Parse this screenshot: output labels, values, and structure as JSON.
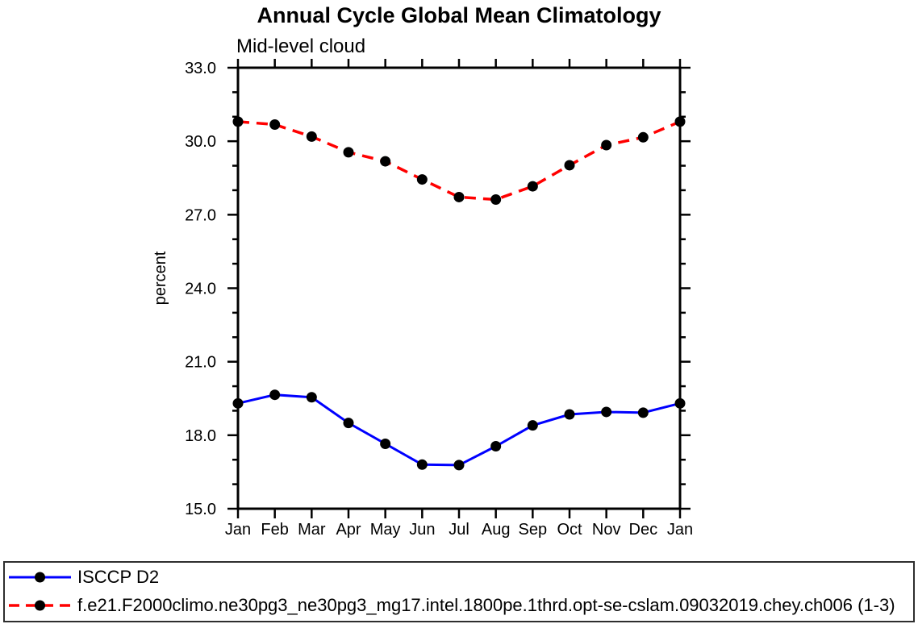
{
  "title": "Annual Cycle Global Mean Climatology",
  "subtitle": "Mid-level cloud",
  "chart_data": {
    "type": "line",
    "title": "Annual Cycle Global Mean Climatology",
    "subtitle": "Mid-level cloud",
    "ylabel": "percent",
    "xlabel": "",
    "x_categories": [
      "Jan",
      "Feb",
      "Mar",
      "Apr",
      "May",
      "Jun",
      "Jul",
      "Aug",
      "Sep",
      "Oct",
      "Nov",
      "Dec",
      "Jan"
    ],
    "ylim": [
      15.0,
      33.0
    ],
    "ytick_major": [
      15.0,
      18.0,
      21.0,
      24.0,
      27.0,
      30.0,
      33.0
    ],
    "ytick_minor_step": 1.0,
    "grid": false,
    "legend_position": "bottom-outside-box",
    "axis_color": "#000000",
    "marker_color": "#000000",
    "series": [
      {
        "name": "ISCCP D2",
        "color": "#0000ff",
        "line_style": "solid",
        "marker": "filled-circle",
        "values": [
          19.3,
          19.65,
          19.55,
          18.5,
          17.65,
          16.8,
          16.78,
          17.55,
          18.4,
          18.85,
          18.95,
          18.92,
          19.3
        ]
      },
      {
        "name": "f.e21.F2000climo.ne30pg3_ne30pg3_mg17.intel.1800pe.1thrd.opt-se-cslam.09032019.chey.ch006 (1-3)",
        "color": "#ff0000",
        "line_style": "dashed",
        "marker": "filled-circle",
        "values": [
          30.8,
          30.68,
          30.19,
          29.55,
          29.18,
          28.44,
          27.72,
          27.62,
          28.16,
          29.02,
          29.84,
          30.16,
          30.8
        ]
      }
    ]
  }
}
